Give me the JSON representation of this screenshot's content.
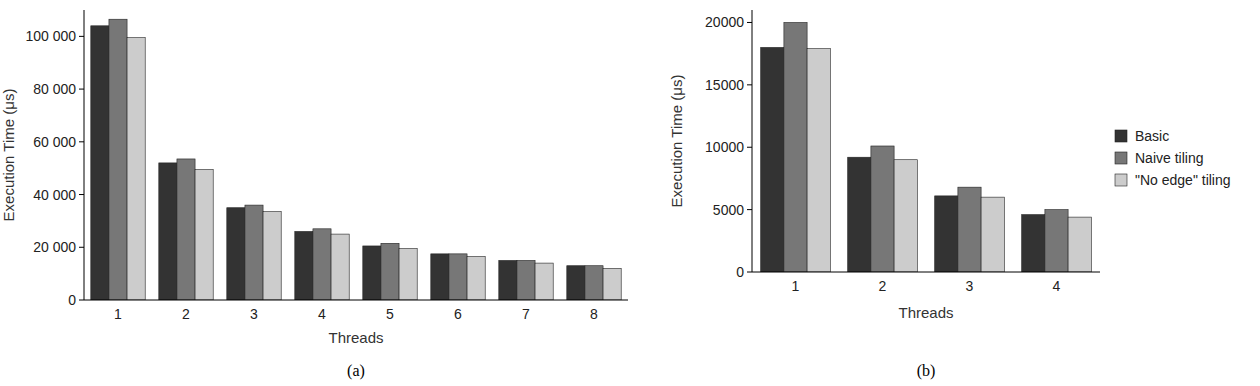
{
  "chart_data": [
    {
      "type": "bar",
      "title": "(a)",
      "x_label": "Threads",
      "y_label": "Execution Time (μs)",
      "categories": [
        "1",
        "2",
        "3",
        "4",
        "5",
        "6",
        "7",
        "8"
      ],
      "series": [
        {
          "color": "#333333",
          "values": [
            104000,
            52000,
            35000,
            26000,
            20500,
            17500,
            15000,
            13000
          ]
        },
        {
          "color": "#777777",
          "values": [
            106500,
            53500,
            36000,
            27000,
            21500,
            17500,
            15000,
            13000
          ]
        },
        {
          "color": "#cccccc",
          "values": [
            99500,
            49500,
            33500,
            25000,
            19500,
            16500,
            14000,
            12000
          ]
        }
      ],
      "ylim": [
        0,
        110000
      ],
      "yticks": [
        0,
        {
          "value": 20000,
          "label": "20 000"
        },
        {
          "value": 40000,
          "label": "40 000"
        },
        {
          "value": 60000,
          "label": "60 000"
        },
        {
          "value": 80000,
          "label": "80 000"
        },
        {
          "value": 100000,
          "label": "100 000"
        }
      ],
      "grid": false
    },
    {
      "type": "bar",
      "title": "(b)",
      "x_label": "Threads",
      "y_label": "Execution Time (μs)",
      "categories": [
        "1",
        "2",
        "3",
        "4"
      ],
      "series": [
        {
          "name": "Basic",
          "color": "#333333",
          "values": [
            18000,
            9200,
            6100,
            4600
          ]
        },
        {
          "name": "Naive tiling",
          "color": "#777777",
          "values": [
            20000,
            10100,
            6800,
            5000
          ]
        },
        {
          "name": "\"No edge\" tiling",
          "color": "#cccccc",
          "values": [
            17900,
            9000,
            6000,
            4400
          ]
        }
      ],
      "ylim": [
        0,
        21000
      ],
      "yticks": [
        0,
        5000,
        10000,
        15000,
        20000
      ],
      "grid": false,
      "legend": "right"
    }
  ]
}
